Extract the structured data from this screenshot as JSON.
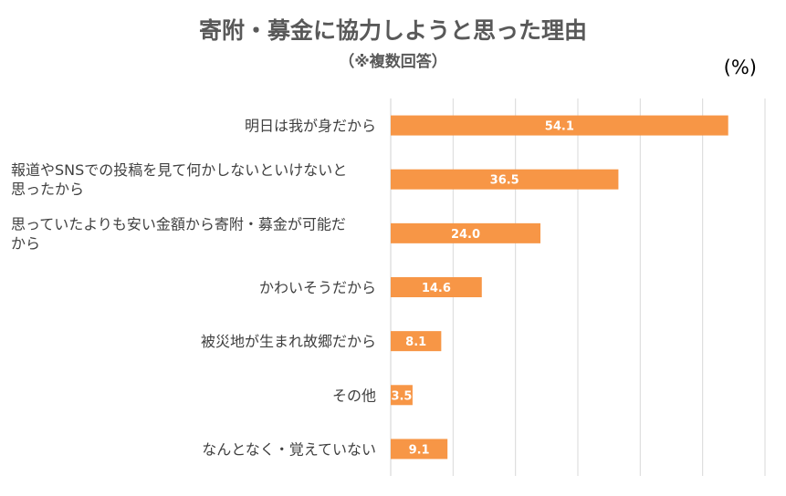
{
  "chart_data": {
    "type": "bar",
    "orientation": "horizontal",
    "title": "寄附・募金に協力しようと思った理由",
    "subtitle": "（※複数回答）",
    "unit": "(%)",
    "categories": [
      [
        "明日は我が身だから"
      ],
      [
        "報道やSNSでの投稿を見て何かしないといけないと",
        "思ったから"
      ],
      [
        "思っていたよりも安い金額から寄附・募金が可能だ",
        "から"
      ],
      [
        "かわいそうだから"
      ],
      [
        "被災地が生まれ故郷だから"
      ],
      [
        "その他"
      ],
      [
        "なんとなく・覚えていない"
      ]
    ],
    "values": [
      54.1,
      36.5,
      24.0,
      14.6,
      8.1,
      3.5,
      9.1
    ],
    "value_labels": [
      "54.1",
      "36.5",
      "24.0",
      "14.6",
      "8.1",
      "3.5",
      "9.1"
    ],
    "xlim": [
      0,
      60
    ],
    "grid": true,
    "bar_color": "#F79646",
    "grid_color": "#D9D9D9"
  }
}
